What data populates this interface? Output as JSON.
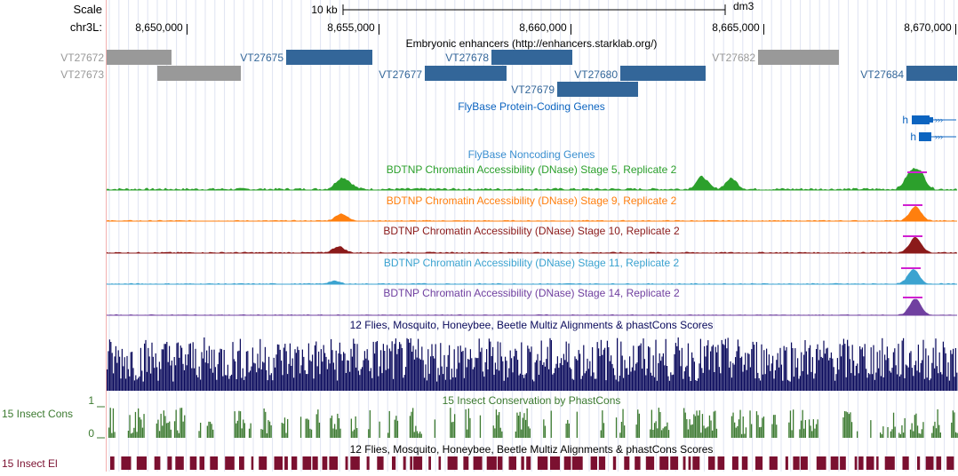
{
  "scale": {
    "label": "Scale",
    "bar_label": "10 kb",
    "assembly": "dm3"
  },
  "ruler": {
    "chrom_label": "chr3L:",
    "ticks": [
      "8,650,000",
      "8,655,000",
      "8,660,000",
      "8,665,000",
      "8,670,000"
    ]
  },
  "enhancers": {
    "title": "Embryonic enhancers (http://enhancers.starklab.org/)",
    "items": [
      {
        "label": "VT27672",
        "color": "#999999"
      },
      {
        "label": "VT27673",
        "color": "#999999"
      },
      {
        "label": "VT27675",
        "color": "#336699"
      },
      {
        "label": "VT27677",
        "color": "#336699"
      },
      {
        "label": "VT27678",
        "color": "#336699"
      },
      {
        "label": "VT27679",
        "color": "#336699"
      },
      {
        "label": "VT27680",
        "color": "#336699"
      },
      {
        "label": "VT27682",
        "color": "#999999"
      },
      {
        "label": "VT27684",
        "color": "#336699"
      }
    ]
  },
  "genes": {
    "title": "FlyBase Protein-Coding Genes",
    "color": "#0c64c0",
    "items": [
      {
        "label": "h"
      },
      {
        "label": "h"
      }
    ]
  },
  "noncoding": {
    "title": "FlyBase Noncoding Genes",
    "color": "#3a8fd0"
  },
  "dnase": [
    {
      "title": "BDTNP Chromatin Accessibility (DNase) Stage 5, Replicate 2",
      "color": "#2ca02c"
    },
    {
      "title": "BDTNP Chromatin Accessibility (DNase) Stage 9, Replicate 2",
      "color": "#ff7f0e"
    },
    {
      "title": "BDTNP Chromatin Accessibility (DNase) Stage 10, Replicate 2",
      "color": "#8b1a1a"
    },
    {
      "title": "BDTNP Chromatin Accessibility (DNase) Stage 11, Replicate 2",
      "color": "#3ba3d0"
    },
    {
      "title": "BDTNP Chromatin Accessibility (DNase) Stage 14, Replicate 2",
      "color": "#7040a0"
    }
  ],
  "multiz": {
    "title": "12 Flies, Mosquito, Honeybee, Beetle Multiz Alignments & phastCons Scores",
    "color": "#0a0a5c"
  },
  "insect_cons": {
    "title": "15 Insect Conservation by PhastCons",
    "side_label": "15 Insect Cons",
    "axis_max": "1",
    "axis_min": "0",
    "color": "#3c7a30"
  },
  "insect_el": {
    "title": "12 Flies, Mosquito, Honeybee, Beetle Multiz Alignments & phastCons Scores",
    "side_label": "15 Insect El",
    "color": "#7b1030"
  }
}
